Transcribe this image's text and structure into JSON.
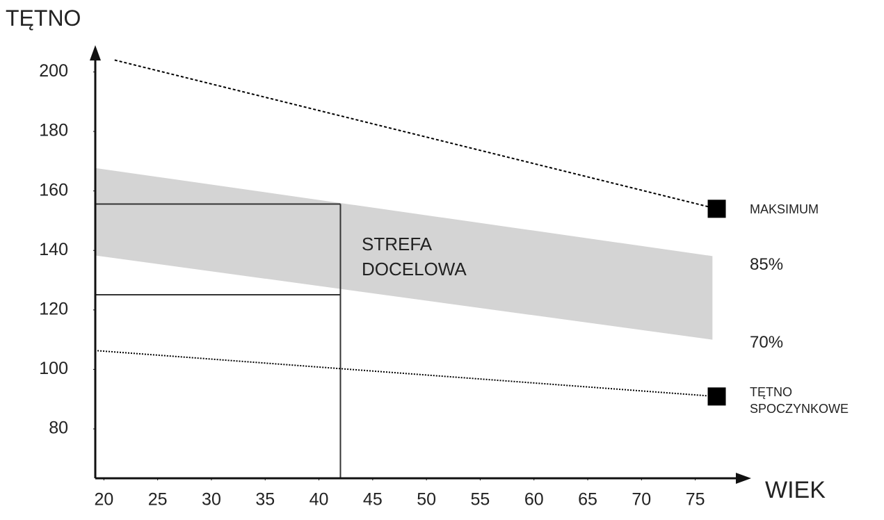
{
  "chart_data": {
    "type": "line",
    "y_label": "TĘTNO",
    "x_label": "WIEK",
    "xlim": [
      19.2,
      80.2
    ],
    "ylim": [
      63.4,
      209
    ],
    "xticks": [
      20,
      25,
      30,
      35,
      40,
      45,
      50,
      55,
      60,
      65,
      70,
      75
    ],
    "yticks": [
      80,
      100,
      120,
      140,
      160,
      180,
      200
    ],
    "series": [
      {
        "name": "MAKSIMUM",
        "color": "#000000",
        "x": [
          21,
          77
        ],
        "values": [
          204,
          154
        ]
      },
      {
        "name": "TĘTNO SPOCZYNKOWE",
        "color": "#000000",
        "x": [
          19.4,
          77
        ],
        "values": [
          106.3,
          90.9
        ]
      }
    ],
    "band": {
      "name": "STREFA DOCELOWA",
      "color": "#d4d4d4",
      "x": [
        19.2,
        76.6
      ],
      "upper": [
        167.7,
        138.1
      ],
      "lower": [
        138.3,
        110
      ],
      "upper_label": "85%",
      "lower_label": "70%"
    },
    "reference": {
      "age": 42,
      "values": [
        155.6,
        125.1
      ]
    }
  }
}
